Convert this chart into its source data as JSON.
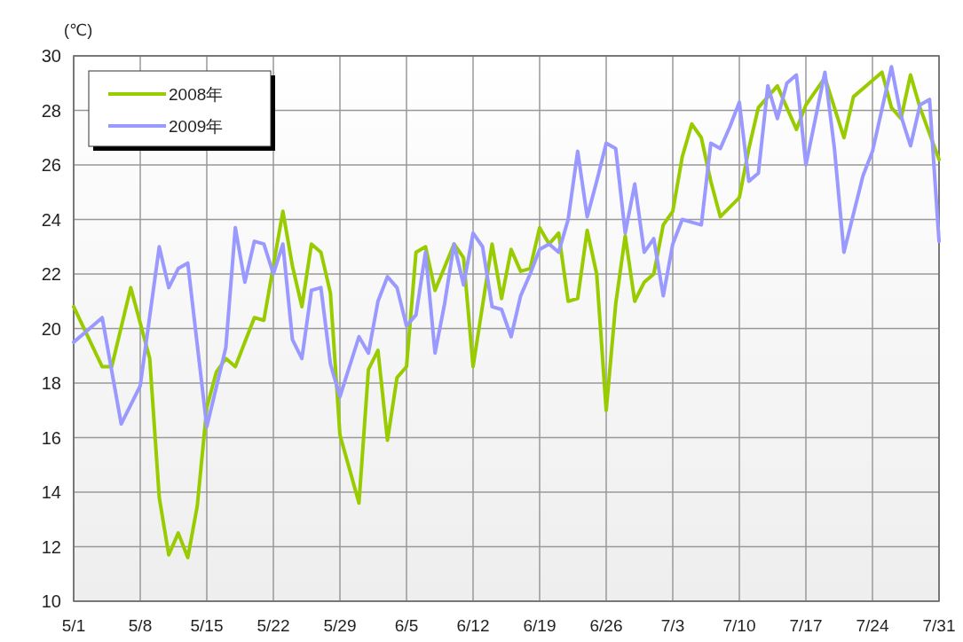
{
  "chart_data": {
    "type": "line",
    "ylabel": "(℃)",
    "xlim": [
      "--05-01",
      "--07-31"
    ],
    "ylim": [
      10,
      30
    ],
    "yticks": [
      10,
      12,
      14,
      16,
      18,
      20,
      22,
      24,
      26,
      28,
      30
    ],
    "xticks": [
      {
        "value": "--05-01",
        "label": "5/1"
      },
      {
        "value": "--05-08",
        "label": "5/8"
      },
      {
        "value": "--05-15",
        "label": "5/15"
      },
      {
        "value": "--05-22",
        "label": "5/22"
      },
      {
        "value": "--05-29",
        "label": "5/29"
      },
      {
        "value": "--06-05",
        "label": "6/5"
      },
      {
        "value": "--06-12",
        "label": "6/12"
      },
      {
        "value": "--06-19",
        "label": "6/19"
      },
      {
        "value": "--06-26",
        "label": "6/26"
      },
      {
        "value": "--07-03",
        "label": "7/3"
      },
      {
        "value": "--07-10",
        "label": "7/10"
      },
      {
        "value": "--07-17",
        "label": "7/17"
      },
      {
        "value": "--07-24",
        "label": "7/24"
      },
      {
        "value": "--07-31",
        "label": "7/31"
      }
    ],
    "grid": true,
    "legend": "top left",
    "marker": "none",
    "line_style": "solid",
    "series": [
      {
        "name": "2008年",
        "color": "#99cc00",
        "x": [
          "--05-01",
          "--05-04",
          "--05-05",
          "--05-07",
          "--05-09",
          "--05-10",
          "--05-11",
          "--05-12",
          "--05-13",
          "--05-14",
          "--05-15",
          "--05-16",
          "--05-17",
          "--05-18",
          "--05-20",
          "--05-21",
          "--05-23",
          "--05-24",
          "--05-25",
          "--05-26",
          "--05-27",
          "--05-28",
          "--05-29",
          "--05-31",
          "--06-01",
          "--06-02",
          "--06-03",
          "--06-04",
          "--06-05",
          "--06-06",
          "--06-07",
          "--06-08",
          "--06-10",
          "--06-11",
          "--06-12",
          "--06-14",
          "--06-15",
          "--06-16",
          "--06-17",
          "--06-18",
          "--06-19",
          "--06-20",
          "--06-21",
          "--06-22",
          "--06-23",
          "--06-24",
          "--06-25",
          "--06-26",
          "--06-27",
          "--06-28",
          "--06-29",
          "--06-30",
          "--07-01",
          "--07-02",
          "--07-03",
          "--07-04",
          "--07-05",
          "--07-06",
          "--07-07",
          "--07-08",
          "--07-10",
          "--07-11",
          "--07-12",
          "--07-14",
          "--07-15",
          "--07-16",
          "--07-17",
          "--07-19",
          "--07-21",
          "--07-22",
          "--07-24",
          "--07-25",
          "--07-26",
          "--07-27",
          "--07-28",
          "--07-29",
          "--07-31"
        ],
        "values": [
          20.8,
          18.6,
          18.6,
          21.5,
          18.9,
          13.8,
          11.7,
          12.5,
          11.6,
          13.5,
          17.1,
          18.4,
          18.9,
          18.6,
          20.4,
          20.3,
          24.3,
          22.3,
          20.8,
          23.1,
          22.8,
          21.3,
          16.1,
          13.6,
          18.5,
          19.2,
          15.9,
          18.2,
          18.6,
          22.8,
          23.0,
          21.4,
          23.1,
          22.6,
          18.6,
          23.1,
          21.1,
          22.9,
          22.1,
          22.2,
          23.7,
          23.1,
          23.5,
          21.0,
          21.1,
          23.6,
          22.0,
          17.0,
          20.9,
          23.4,
          21.0,
          21.7,
          22.0,
          23.8,
          24.3,
          26.3,
          27.5,
          27.0,
          25.4,
          24.1,
          24.8,
          26.6,
          28.1,
          28.9,
          28.1,
          27.3,
          28.2,
          29.2,
          27.0,
          28.5,
          29.1,
          29.4,
          28.1,
          27.7,
          29.3,
          28.1,
          26.2
        ]
      },
      {
        "name": "2009年",
        "color": "#9999ff",
        "x": [
          "--05-01",
          "--05-02",
          "--05-04",
          "--05-06",
          "--05-08",
          "--05-10",
          "--05-11",
          "--05-12",
          "--05-13",
          "--05-15",
          "--05-17",
          "--05-18",
          "--05-19",
          "--05-20",
          "--05-21",
          "--05-22",
          "--05-23",
          "--05-24",
          "--05-25",
          "--05-26",
          "--05-27",
          "--05-28",
          "--05-29",
          "--05-31",
          "--06-01",
          "--06-02",
          "--06-03",
          "--06-04",
          "--06-05",
          "--06-06",
          "--06-07",
          "--06-08",
          "--06-09",
          "--06-10",
          "--06-11",
          "--06-12",
          "--06-13",
          "--06-14",
          "--06-15",
          "--06-16",
          "--06-17",
          "--06-18",
          "--06-19",
          "--06-20",
          "--06-21",
          "--06-22",
          "--06-23",
          "--06-24",
          "--06-25",
          "--06-26",
          "--06-27",
          "--06-28",
          "--06-29",
          "--06-30",
          "--07-01",
          "--07-02",
          "--07-03",
          "--07-04",
          "--07-05",
          "--07-06",
          "--07-07",
          "--07-08",
          "--07-09",
          "--07-10",
          "--07-11",
          "--07-12",
          "--07-13",
          "--07-14",
          "--07-15",
          "--07-16",
          "--07-17",
          "--07-19",
          "--07-20",
          "--07-21",
          "--07-23",
          "--07-24",
          "--07-26",
          "--07-27",
          "--07-28",
          "--07-29",
          "--07-30",
          "--07-31"
        ],
        "values": [
          19.5,
          19.8,
          20.4,
          16.5,
          17.9,
          23.0,
          21.5,
          22.2,
          22.4,
          16.4,
          19.3,
          23.7,
          21.7,
          23.2,
          23.1,
          22.0,
          23.1,
          19.6,
          18.9,
          21.4,
          21.5,
          18.7,
          17.5,
          19.7,
          19.1,
          21.0,
          21.9,
          21.5,
          20.1,
          20.5,
          22.8,
          19.1,
          20.9,
          23.1,
          21.6,
          23.5,
          23.0,
          20.8,
          20.7,
          19.7,
          21.2,
          22.0,
          22.9,
          23.1,
          22.8,
          24.0,
          26.5,
          24.1,
          25.4,
          26.8,
          26.6,
          23.5,
          25.3,
          22.8,
          23.3,
          21.2,
          23.1,
          24.0,
          23.9,
          23.8,
          26.8,
          26.6,
          27.4,
          28.3,
          25.4,
          25.7,
          28.9,
          27.7,
          29.0,
          29.3,
          26.0,
          29.4,
          26.6,
          22.8,
          25.6,
          26.5,
          29.6,
          27.8,
          26.7,
          28.2,
          28.4,
          23.2
        ]
      }
    ]
  }
}
